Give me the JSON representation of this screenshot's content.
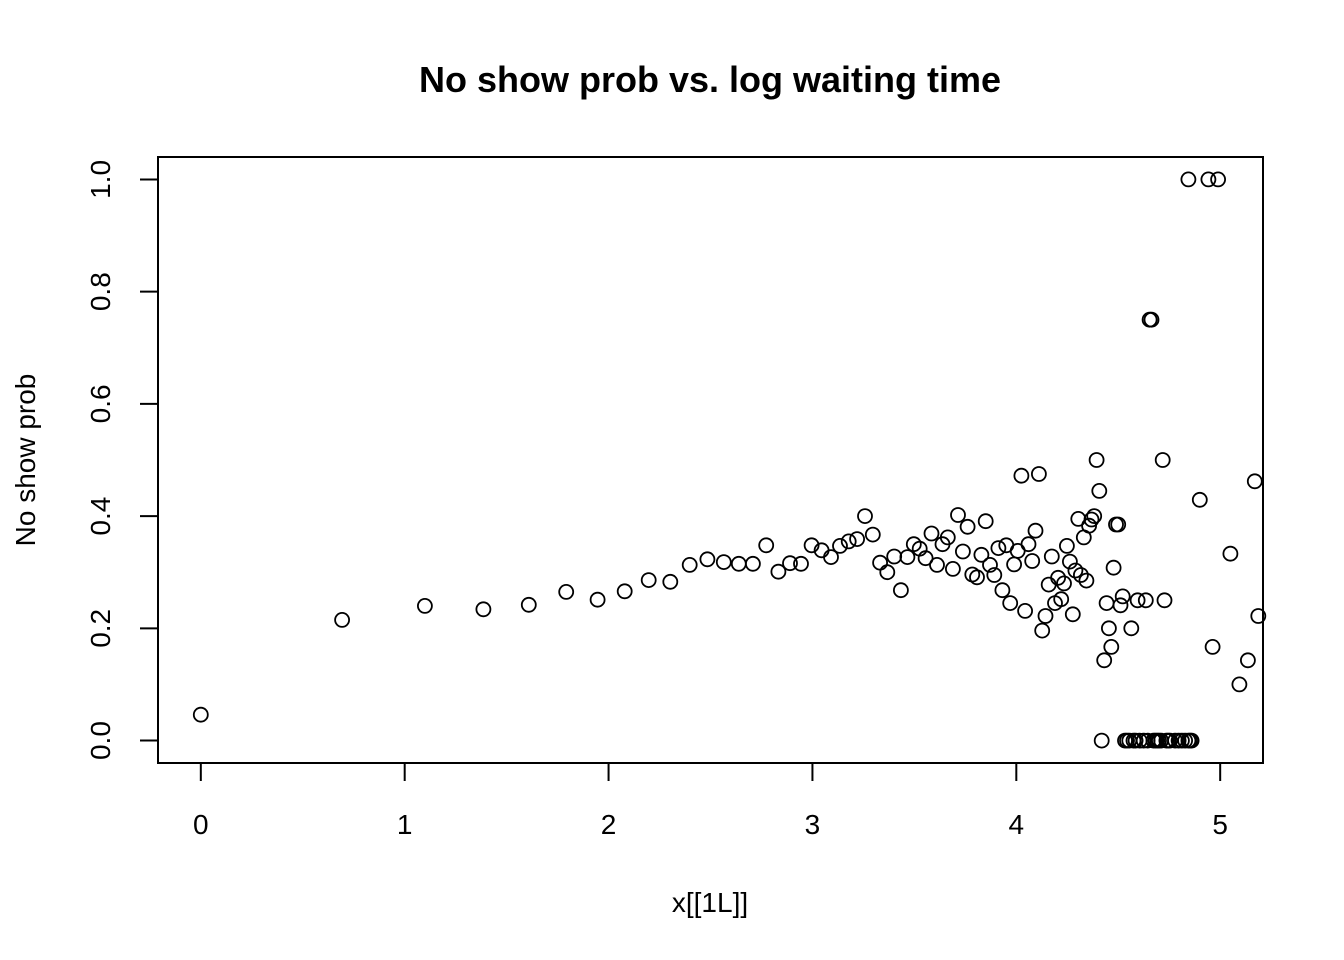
{
  "chart_data": {
    "type": "scatter",
    "title": "No show prob vs. log waiting time",
    "xlabel": "x[[1L]]",
    "ylabel": "No show prob",
    "xlim": [
      -0.21,
      5.21
    ],
    "ylim": [
      -0.04,
      1.04
    ],
    "xticks": [
      0,
      1,
      2,
      3,
      4,
      5
    ],
    "yticks": [
      0.0,
      0.2,
      0.4,
      0.6,
      0.8,
      1.0
    ],
    "xtick_labels": [
      "0",
      "1",
      "2",
      "3",
      "4",
      "5"
    ],
    "ytick_labels": [
      "0.0",
      "0.2",
      "0.4",
      "0.6",
      "0.8",
      "1.0"
    ],
    "grid": false,
    "marker": "open-circle",
    "points": [
      [
        0.0,
        0.046
      ],
      [
        0.693,
        0.215
      ],
      [
        1.099,
        0.24
      ],
      [
        1.386,
        0.234
      ],
      [
        1.609,
        0.242
      ],
      [
        1.792,
        0.265
      ],
      [
        1.946,
        0.251
      ],
      [
        2.079,
        0.266
      ],
      [
        2.197,
        0.286
      ],
      [
        2.303,
        0.283
      ],
      [
        2.398,
        0.313
      ],
      [
        2.485,
        0.323
      ],
      [
        2.565,
        0.318
      ],
      [
        2.639,
        0.315
      ],
      [
        2.708,
        0.315
      ],
      [
        2.773,
        0.348
      ],
      [
        2.833,
        0.301
      ],
      [
        2.89,
        0.316
      ],
      [
        2.944,
        0.315
      ],
      [
        2.996,
        0.348
      ],
      [
        3.045,
        0.339
      ],
      [
        3.091,
        0.327
      ],
      [
        3.135,
        0.347
      ],
      [
        3.178,
        0.355
      ],
      [
        3.219,
        0.359
      ],
      [
        3.258,
        0.4
      ],
      [
        3.296,
        0.367
      ],
      [
        3.332,
        0.317
      ],
      [
        3.367,
        0.3
      ],
      [
        3.401,
        0.328
      ],
      [
        3.434,
        0.268
      ],
      [
        3.466,
        0.327
      ],
      [
        3.497,
        0.35
      ],
      [
        3.526,
        0.342
      ],
      [
        3.555,
        0.325
      ],
      [
        3.584,
        0.369
      ],
      [
        3.611,
        0.313
      ],
      [
        3.638,
        0.35
      ],
      [
        3.664,
        0.362
      ],
      [
        3.689,
        0.306
      ],
      [
        3.714,
        0.402
      ],
      [
        3.738,
        0.337
      ],
      [
        3.761,
        0.381
      ],
      [
        3.784,
        0.296
      ],
      [
        3.807,
        0.291
      ],
      [
        3.829,
        0.331
      ],
      [
        3.85,
        0.391
      ],
      [
        3.871,
        0.313
      ],
      [
        3.892,
        0.295
      ],
      [
        3.912,
        0.343
      ],
      [
        3.932,
        0.268
      ],
      [
        3.951,
        0.348
      ],
      [
        3.97,
        0.245
      ],
      [
        3.989,
        0.314
      ],
      [
        4.007,
        0.338
      ],
      [
        4.025,
        0.472
      ],
      [
        4.043,
        0.231
      ],
      [
        4.06,
        0.35
      ],
      [
        4.078,
        0.32
      ],
      [
        4.094,
        0.374
      ],
      [
        4.111,
        0.475
      ],
      [
        4.127,
        0.196
      ],
      [
        4.143,
        0.222
      ],
      [
        4.159,
        0.278
      ],
      [
        4.174,
        0.328
      ],
      [
        4.19,
        0.245
      ],
      [
        4.205,
        0.29
      ],
      [
        4.22,
        0.252
      ],
      [
        4.234,
        0.28
      ],
      [
        4.248,
        0.347
      ],
      [
        4.263,
        0.319
      ],
      [
        4.277,
        0.225
      ],
      [
        4.29,
        0.303
      ],
      [
        4.304,
        0.395
      ],
      [
        4.317,
        0.295
      ],
      [
        4.331,
        0.362
      ],
      [
        4.344,
        0.285
      ],
      [
        4.357,
        0.383
      ],
      [
        4.369,
        0.394
      ],
      [
        4.382,
        0.4
      ],
      [
        4.394,
        0.5
      ],
      [
        4.407,
        0.445
      ],
      [
        4.419,
        0.0
      ],
      [
        4.431,
        0.143
      ],
      [
        4.443,
        0.245
      ],
      [
        4.454,
        0.2
      ],
      [
        4.466,
        0.167
      ],
      [
        4.477,
        0.308
      ],
      [
        4.489,
        0.385
      ],
      [
        4.5,
        0.385
      ],
      [
        4.511,
        0.241
      ],
      [
        4.522,
        0.257
      ],
      [
        4.533,
        0.0
      ],
      [
        4.543,
        0.0
      ],
      [
        4.554,
        0.0
      ],
      [
        4.564,
        0.2
      ],
      [
        4.575,
        0.0
      ],
      [
        4.585,
        0.0
      ],
      [
        4.595,
        0.25
      ],
      [
        4.605,
        0.0
      ],
      [
        4.625,
        0.0
      ],
      [
        4.635,
        0.25
      ],
      [
        4.644,
        0.0
      ],
      [
        4.654,
        0.75
      ],
      [
        4.663,
        0.75
      ],
      [
        4.673,
        0.0
      ],
      [
        4.682,
        0.0
      ],
      [
        4.691,
        0.0
      ],
      [
        4.7,
        0.0
      ],
      [
        4.71,
        0.0
      ],
      [
        4.718,
        0.5
      ],
      [
        4.727,
        0.25
      ],
      [
        4.736,
        0.0
      ],
      [
        4.745,
        0.0
      ],
      [
        4.754,
        0.0
      ],
      [
        4.779,
        0.0
      ],
      [
        4.796,
        0.0
      ],
      [
        4.812,
        0.0
      ],
      [
        4.828,
        0.0
      ],
      [
        4.844,
        0.0
      ],
      [
        4.852,
        0.0
      ],
      [
        4.86,
        0.0
      ],
      [
        4.844,
        1.0
      ],
      [
        4.942,
        1.0
      ],
      [
        4.99,
        1.0
      ],
      [
        4.9,
        0.429
      ],
      [
        4.963,
        0.167
      ],
      [
        5.05,
        0.333
      ],
      [
        5.094,
        0.1
      ],
      [
        5.136,
        0.143
      ],
      [
        5.17,
        0.462
      ],
      [
        5.187,
        0.222
      ]
    ]
  }
}
